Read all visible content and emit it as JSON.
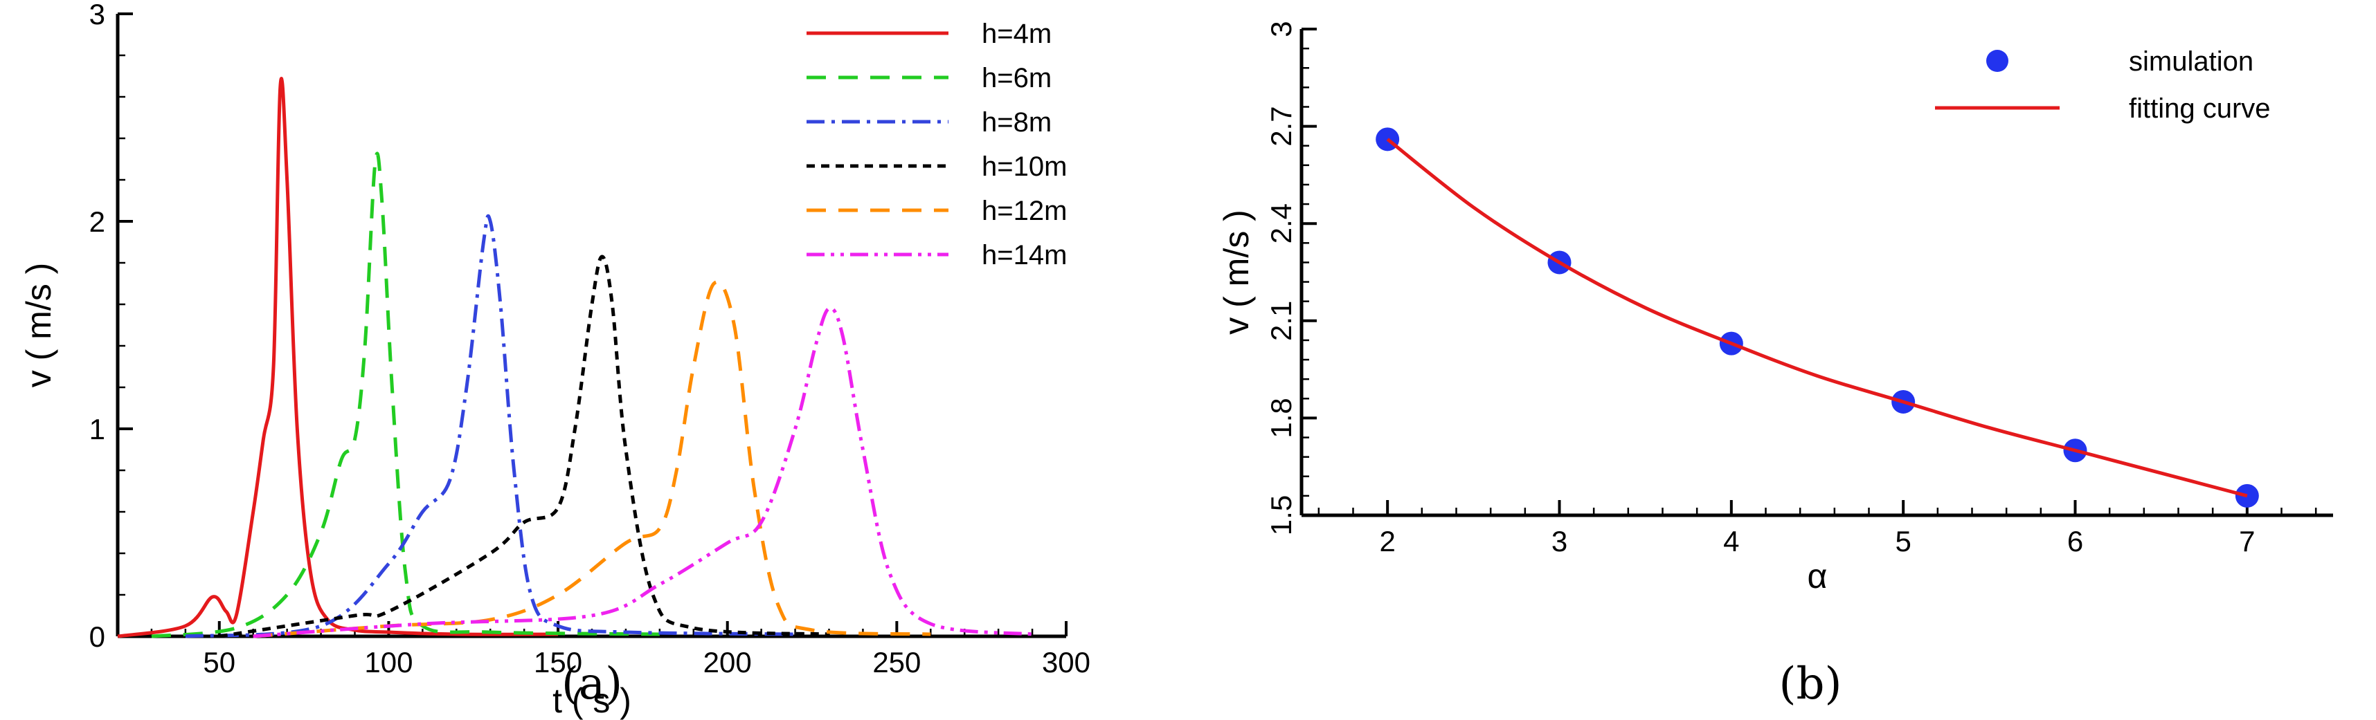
{
  "chart_data": [
    {
      "panel": "a",
      "caption": "(a)",
      "type": "line",
      "xlabel": "t ( s )",
      "ylabel": "v ( m/s )",
      "xlim": [
        20,
        300
      ],
      "ylim": [
        0,
        3
      ],
      "xticks": [
        50,
        100,
        150,
        200,
        250,
        300
      ],
      "yticks": [
        0,
        1,
        2,
        3
      ],
      "legend_position": "top-right",
      "series": [
        {
          "name": "h=4m",
          "color": "#e41a1c",
          "dash": "solid",
          "x": [
            20,
            40,
            48,
            52,
            55,
            60,
            63,
            66,
            68,
            70,
            73,
            77,
            82,
            90,
            100,
            120,
            150
          ],
          "y": [
            0,
            0.05,
            0.19,
            0.12,
            0.1,
            0.6,
            0.95,
            1.3,
            2.65,
            2.2,
            1.0,
            0.3,
            0.08,
            0.03,
            0.02,
            0.01,
            0.01
          ]
        },
        {
          "name": "h=6m",
          "color": "#22cc22",
          "dash": "long-dash",
          "x": [
            30,
            55,
            70,
            80,
            86,
            90,
            93,
            96,
            98,
            101,
            105,
            110,
            130,
            180
          ],
          "y": [
            0,
            0.04,
            0.2,
            0.5,
            0.85,
            0.95,
            1.4,
            2.28,
            2.1,
            1.2,
            0.3,
            0.05,
            0.02,
            0.01
          ]
        },
        {
          "name": "h=8m",
          "color": "#3344dd",
          "dash": "dash-dot",
          "x": [
            40,
            80,
            100,
            110,
            118,
            123,
            128,
            130,
            133,
            137,
            142,
            150,
            170,
            220
          ],
          "y": [
            0,
            0.05,
            0.35,
            0.6,
            0.75,
            1.2,
            1.9,
            2.0,
            1.6,
            0.8,
            0.2,
            0.05,
            0.02,
            0.01
          ]
        },
        {
          "name": "h=10m",
          "color": "#000000",
          "dash": "short-dash",
          "x": [
            50,
            90,
            100,
            130,
            140,
            150,
            155,
            160,
            163,
            166,
            170,
            178,
            190,
            230
          ],
          "y": [
            0,
            0.1,
            0.12,
            0.4,
            0.55,
            0.62,
            1.0,
            1.6,
            1.83,
            1.6,
            0.9,
            0.2,
            0.04,
            0.01
          ]
        },
        {
          "name": "h=12m",
          "color": "#ff8c00",
          "dash": "long-dash",
          "x": [
            60,
            100,
            130,
            150,
            170,
            180,
            185,
            190,
            196,
            202,
            208,
            215,
            225,
            260
          ],
          "y": [
            0,
            0.05,
            0.08,
            0.2,
            0.45,
            0.52,
            0.8,
            1.3,
            1.7,
            1.5,
            0.7,
            0.15,
            0.03,
            0.01
          ]
        },
        {
          "name": "h=14m",
          "color": "#ee22ee",
          "dash": "dash-dot-dot",
          "x": [
            60,
            110,
            160,
            180,
            200,
            210,
            220,
            226,
            230,
            234,
            240,
            248,
            260,
            290
          ],
          "y": [
            0,
            0.06,
            0.1,
            0.25,
            0.45,
            0.55,
            1.0,
            1.4,
            1.58,
            1.45,
            0.9,
            0.3,
            0.06,
            0.01
          ]
        }
      ]
    },
    {
      "panel": "b",
      "caption": "(b)",
      "type": "scatter",
      "xlabel": "α",
      "ylabel": "v ( m/s )",
      "xlim": [
        1.5,
        7.5
      ],
      "ylim": [
        1.5,
        3.0
      ],
      "xticks": [
        2,
        3,
        4,
        5,
        6,
        7
      ],
      "yticks": [
        1.5,
        1.8,
        2.1,
        2.4,
        2.7,
        3
      ],
      "ytick_labels": [
        "1.5",
        "1.8",
        "2.1",
        "2.4",
        "2.7",
        "3"
      ],
      "legend_position": "top-right",
      "series": [
        {
          "name": "simulation",
          "color": "#2233ee",
          "marker": "circle",
          "x": [
            2,
            3,
            4,
            5,
            6,
            7
          ],
          "y": [
            2.66,
            2.28,
            2.03,
            1.85,
            1.7,
            1.56
          ]
        },
        {
          "name": "fitting curve",
          "color": "#e41a1c",
          "line": "solid",
          "x": [
            2,
            2.5,
            3,
            3.5,
            4,
            4.5,
            5,
            5.5,
            6,
            6.5,
            7
          ],
          "y": [
            2.66,
            2.45,
            2.28,
            2.14,
            2.03,
            1.93,
            1.85,
            1.77,
            1.7,
            1.63,
            1.56
          ]
        }
      ]
    }
  ]
}
